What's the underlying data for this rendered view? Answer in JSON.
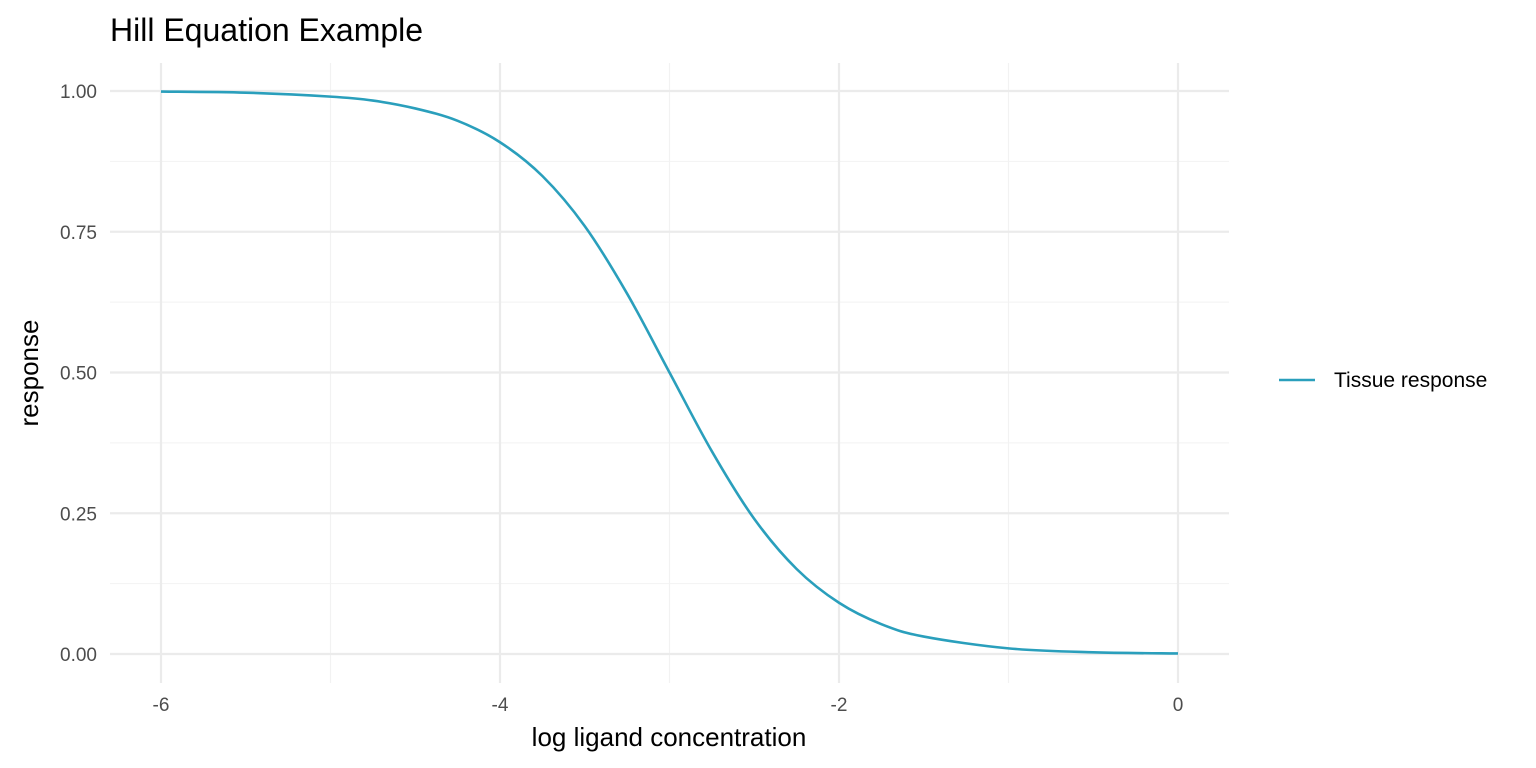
{
  "chart_data": {
    "type": "line",
    "title": "Hill Equation Example",
    "xlabel": "log ligand concentration",
    "ylabel": "response",
    "xlim": [
      -6,
      0
    ],
    "ylim": [
      0,
      1
    ],
    "x_ticks": [
      -6,
      -4,
      -2,
      0
    ],
    "x_tick_labels": [
      "-6",
      "-4",
      "-2",
      "0"
    ],
    "y_ticks": [
      0,
      0.25,
      0.5,
      0.75,
      1
    ],
    "y_tick_labels": [
      "0.00",
      "0.25",
      "0.50",
      "0.75",
      "1.00"
    ],
    "grid": true,
    "legend_position": "right",
    "series": [
      {
        "name": "Tissue response",
        "color": "#2a9fbc",
        "x": [
          -6,
          -5.5,
          -5,
          -4.75,
          -4.5,
          -4.25,
          -4,
          -3.75,
          -3.5,
          -3.25,
          -3,
          -2.75,
          -2.5,
          -2.25,
          -2,
          -1.75,
          -1.5,
          -1,
          -0.5,
          0
        ],
        "y": [
          0.999,
          0.997,
          0.99,
          0.983,
          0.969,
          0.947,
          0.909,
          0.849,
          0.76,
          0.64,
          0.5,
          0.36,
          0.24,
          0.151,
          0.091,
          0.053,
          0.031,
          0.01,
          0.003,
          0.001
        ]
      }
    ]
  }
}
